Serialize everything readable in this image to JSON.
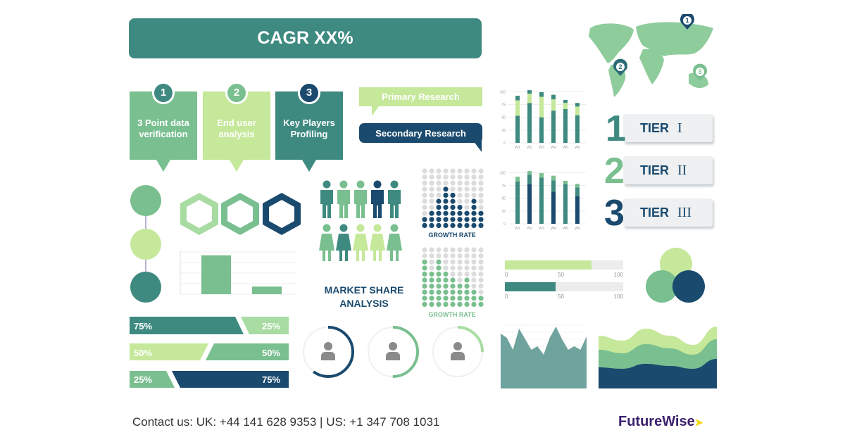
{
  "banner": {
    "title": "CAGR XX%"
  },
  "steps": [
    {
      "num": "1",
      "label": "3 Point data verification",
      "color": "#79bf8f",
      "num_color": "#3e8a80"
    },
    {
      "num": "2",
      "label": "End user analysis",
      "color": "#c5e89a",
      "num_color": "#79bf8f"
    },
    {
      "num": "3",
      "label": "Key Players Profiling",
      "color": "#3e8a80",
      "num_color": "#1a4a6e"
    }
  ],
  "research": {
    "primary": "Primary Research",
    "secondary": "Secondary Research"
  },
  "tiers": [
    {
      "num": "1",
      "label": "TIER",
      "roman": "I",
      "color": "#3e8a80"
    },
    {
      "num": "2",
      "label": "TIER",
      "roman": "II",
      "color": "#79bf8f"
    },
    {
      "num": "3",
      "label": "TIER",
      "roman": "III",
      "color": "#1a4a6e"
    }
  ],
  "map_pins": [
    "1",
    "2",
    "3"
  ],
  "market_share": {
    "line1": "MARKET SHARE",
    "line2": "ANALYSIS"
  },
  "growth_rate": [
    "GROWTH RATE",
    "GROWTH RATE"
  ],
  "progress": [
    {
      "value": 73,
      "color": "#c5e89a",
      "ticks": [
        "0",
        "50",
        "100"
      ]
    },
    {
      "value": 43,
      "color": "#3e8a80",
      "ticks": [
        "0",
        "50",
        "100"
      ]
    }
  ],
  "pct_bars": [
    {
      "left": "75%",
      "right": "25%",
      "lc": "#3e8a80",
      "rc": "#a8dca2"
    },
    {
      "left": "50%",
      "right": "50%",
      "lc": "#c5e89a",
      "rc": "#79bf8f"
    },
    {
      "left": "25%",
      "right": "75%",
      "lc": "#79bf8f",
      "rc": "#1a4a6e"
    }
  ],
  "gauges": [
    {
      "value": 60,
      "color": "#1a4a6e"
    },
    {
      "value": 50,
      "color": "#79bf8f"
    },
    {
      "value": 25,
      "color": "#a8dca2"
    }
  ],
  "footer": {
    "contact": "Contact us: UK: +44 141 628 9353 | US: +1 347 708 1031",
    "logo": "FutureWise"
  },
  "colors": {
    "teal": "#3e8a80",
    "green": "#79bf8f",
    "light": "#c5e89a",
    "navy": "#1a4a6e"
  },
  "chart_data": [
    {
      "type": "bar",
      "stacked": true,
      "categories": [
        "W1",
        "W2",
        "W3",
        "W4",
        "W5",
        "W6"
      ],
      "yticks": [
        "0",
        "25",
        "50",
        "75",
        "100"
      ],
      "ylim": [
        0,
        110
      ],
      "series": [
        {
          "values": [
            53,
            78,
            50,
            63,
            66,
            54
          ],
          "color": "#3e8a80"
        },
        {
          "values": [
            30,
            18,
            40,
            22,
            12,
            17
          ],
          "color": "#c5e89a"
        },
        {
          "values": [
            9,
            7,
            9,
            9,
            6,
            7
          ],
          "color": "#3e8a80"
        }
      ]
    },
    {
      "type": "bar",
      "stacked": true,
      "categories": [
        "W1",
        "W2",
        "W3",
        "W4",
        "W5",
        "W6"
      ],
      "yticks": [
        "0",
        "25",
        "50",
        "75",
        "100"
      ],
      "ylim": [
        0,
        110
      ],
      "series": [
        {
          "values": [
            53,
            78,
            50,
            63,
            66,
            54
          ],
          "color": [
            "#3e8a80",
            "#1a4a6e",
            "#3e8a80",
            "#1a4a6e",
            "#3e8a80",
            "#1a4a6e"
          ]
        },
        {
          "values": [
            30,
            18,
            40,
            22,
            12,
            17
          ],
          "color": "#3e8a80"
        },
        {
          "values": [
            9,
            7,
            9,
            9,
            6,
            7
          ],
          "color": "#79bf8f"
        }
      ]
    },
    {
      "type": "bar",
      "values": [
        92,
        18
      ],
      "ylim": [
        0,
        100
      ],
      "color": "#79bf8f"
    },
    {
      "type": "heatmap",
      "rows": 10,
      "columns": 9,
      "filled": [
        2,
        3,
        5,
        7,
        6,
        4,
        3,
        5,
        3
      ],
      "color": "#1a4a6e"
    },
    {
      "type": "heatmap",
      "rows": 10,
      "columns": 9,
      "filled": [
        8,
        6,
        8,
        6,
        5,
        4,
        5,
        3,
        2
      ],
      "color": "#79bf8f"
    },
    {
      "type": "area",
      "values": [
        78,
        72,
        55,
        85,
        70,
        55,
        60,
        48,
        72,
        88,
        70,
        55,
        60,
        55,
        74
      ],
      "ylim": [
        0,
        100
      ],
      "color": "#6fa39d"
    },
    {
      "type": "area",
      "stacked": true,
      "series": [
        {
          "values": [
            30,
            28,
            35,
            32,
            28,
            42
          ],
          "color": "#1a4a6e"
        },
        {
          "values": [
            25,
            22,
            28,
            25,
            20,
            28
          ],
          "color": "#79bf8f"
        },
        {
          "values": [
            20,
            18,
            22,
            18,
            14,
            18
          ],
          "color": "#c5e89a"
        }
      ]
    }
  ]
}
